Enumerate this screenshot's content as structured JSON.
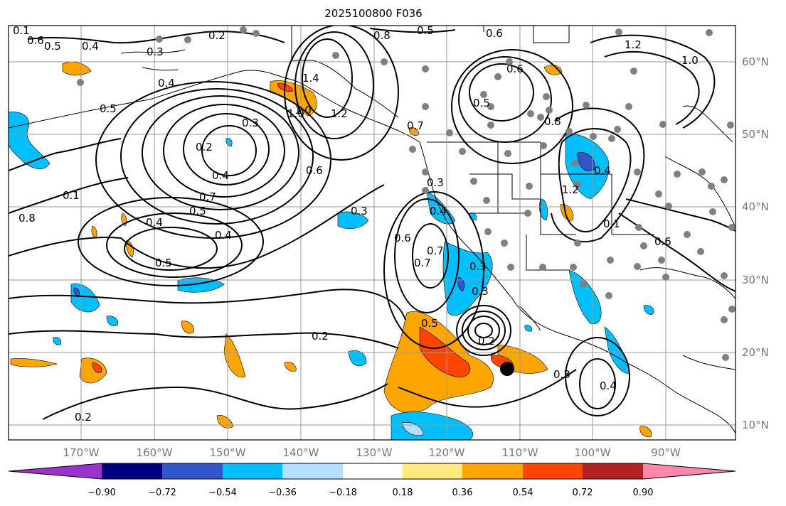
{
  "title": "2025100800 F036",
  "map": {
    "lon_labels": [
      "170°W",
      "160°W",
      "150°W",
      "140°W",
      "130°W",
      "120°W",
      "110°W",
      "100°W",
      "90°W"
    ],
    "lat_labels": [
      "60°N",
      "50°N",
      "40°N",
      "30°N",
      "20°N",
      "10°N"
    ],
    "gridline_color": "#999999",
    "coast_color": "#000000",
    "contour_color": "#000000",
    "contour_labels": [
      "0.1",
      "0.6",
      "0.5",
      "0.4",
      "0.3",
      "0.2",
      "0.4",
      "0.8",
      "0.5",
      "0.6",
      "1.2",
      "1.0",
      "1.0",
      "0.6",
      "0.5",
      "0.8",
      "1.4",
      "1.0",
      "1.2",
      "0.7",
      "0.3",
      "0.2",
      "0.4",
      "0.3",
      "0.6",
      "0.5",
      "0.7",
      "0.8",
      "0.4",
      "0.5",
      "0.4",
      "0.5",
      "0.3",
      "0.3",
      "0.4",
      "0.6",
      "0.7",
      "0.3",
      "0.5",
      "0.2",
      "0.2",
      "0.3",
      "0.4",
      "0.2",
      "0.1",
      "0.7",
      "0.1",
      "0.4",
      "1.2",
      "0.6"
    ],
    "observation_point_color": "#808080",
    "marker_color": "#000000"
  },
  "colorbar": {
    "ticks": [
      "−0.90",
      "−0.72",
      "−0.54",
      "−0.36",
      "−0.18",
      "0.18",
      "0.36",
      "0.54",
      "0.72",
      "0.90"
    ],
    "colors": [
      "#9933cc",
      "#000080",
      "#3355cc",
      "#00bfff",
      "#b3e0ff",
      "#ffffff",
      "#ffea80",
      "#ffa500",
      "#ff4500",
      "#b22222",
      "#ff88aa"
    ]
  }
}
